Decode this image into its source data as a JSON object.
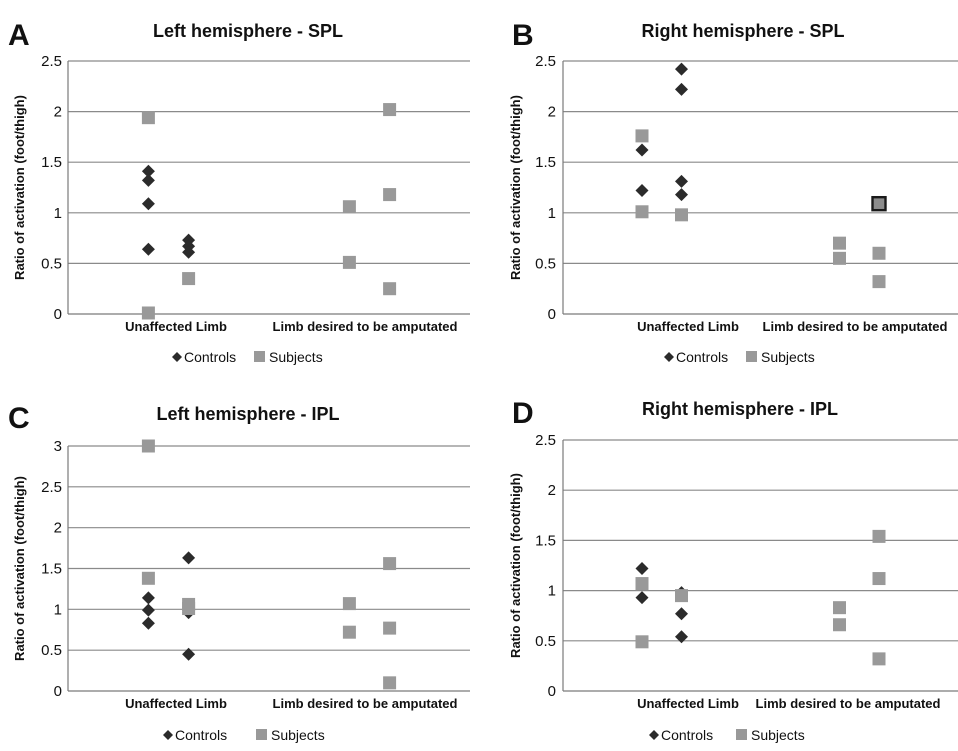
{
  "figure": {
    "legend_controls": "Controls",
    "legend_subjects": "Subjects",
    "ylabel": "Ratio of activation (foot/thigh)"
  },
  "colors": {
    "controls": "#2b2b2b",
    "subjects": "#999999",
    "highlight_fill": "#8c8c8c",
    "highlight_stroke": "#1a1a1a",
    "gridline": "#8a8a8a"
  },
  "chart_data": [
    {
      "panel_letter": "A",
      "title": "Left hemisphere - SPL",
      "type": "scatter",
      "categories": [
        "Unaffected Limb",
        "Limb desired to be amputated"
      ],
      "ylabel": "Ratio of activation (foot/thigh)",
      "ylim": [
        0,
        2.5
      ],
      "yticks": [
        "0",
        "0.5",
        "1",
        "1.5",
        "2",
        "2.5"
      ],
      "grid": true,
      "legend": "bottom",
      "series": [
        {
          "name": "Controls",
          "marker": "diamond",
          "x": [
            0.9,
            0.9,
            0.9,
            0.9,
            1.1,
            1.1,
            1.1
          ],
          "y": [
            1.41,
            1.32,
            1.09,
            0.64,
            0.73,
            0.67,
            0.61
          ]
        },
        {
          "name": "Subjects",
          "marker": "square",
          "x": [
            0.9,
            0.9,
            1.1,
            1.9,
            1.9,
            2.1,
            2.1,
            2.1
          ],
          "y": [
            1.94,
            0.01,
            0.35,
            1.06,
            0.51,
            2.02,
            1.18,
            0.25
          ]
        }
      ]
    },
    {
      "panel_letter": "B",
      "title": "Right hemisphere - SPL",
      "type": "scatter",
      "categories": [
        "Unaffected Limb",
        "Limb desired to be amputated"
      ],
      "ylabel": "Ratio of activation (foot/thigh)",
      "ylim": [
        0,
        2.5
      ],
      "yticks": [
        "0",
        "0.5",
        "1",
        "1.5",
        "2",
        "2.5"
      ],
      "grid": true,
      "legend": "bottom",
      "series": [
        {
          "name": "Controls",
          "marker": "diamond",
          "x": [
            0.9,
            0.9,
            1.1,
            1.1,
            1.1,
            1.1
          ],
          "y": [
            1.62,
            1.22,
            2.42,
            2.22,
            1.31,
            1.18
          ]
        },
        {
          "name": "Subjects",
          "marker": "square",
          "x": [
            0.9,
            0.9,
            1.1,
            1.9,
            1.9,
            2.1,
            2.1,
            2.1
          ],
          "y": [
            1.76,
            1.01,
            0.98,
            0.7,
            0.55,
            1.09,
            0.6,
            0.32
          ],
          "highlight_index": 5
        }
      ]
    },
    {
      "panel_letter": "C",
      "title": "Left hemisphere - IPL",
      "type": "scatter",
      "categories": [
        "Unaffected Limb",
        "Limb desired to be amputated"
      ],
      "ylabel": "Ratio of activation (foot/thigh)",
      "ylim": [
        0,
        3
      ],
      "yticks": [
        "0",
        "0.5",
        "1",
        "1.5",
        "2",
        "2.5",
        "3"
      ],
      "grid": true,
      "legend": "bottom",
      "series": [
        {
          "name": "Controls",
          "marker": "diamond",
          "x": [
            0.9,
            0.9,
            0.9,
            1.1,
            1.1,
            1.1
          ],
          "y": [
            1.14,
            0.99,
            0.83,
            1.63,
            0.96,
            0.45
          ]
        },
        {
          "name": "Subjects",
          "marker": "square",
          "x": [
            0.9,
            1.1,
            1.1,
            1.9,
            1.9,
            2.1,
            2.1,
            2.1,
            0.9
          ],
          "y": [
            1.38,
            1.06,
            1.01,
            1.07,
            0.72,
            1.56,
            0.77,
            0.1,
            3.0
          ]
        }
      ]
    },
    {
      "panel_letter": "D",
      "title": "Right hemisphere - IPL",
      "type": "scatter",
      "categories": [
        "Unaffected Limb",
        "Limb desired to be amputated"
      ],
      "ylabel": "Ratio of activation (foot/thigh)",
      "ylim": [
        0,
        2.5
      ],
      "yticks": [
        "0",
        "0.5",
        "1",
        "1.5",
        "2",
        "2.5"
      ],
      "grid": true,
      "legend": "bottom",
      "series": [
        {
          "name": "Controls",
          "marker": "diamond",
          "x": [
            0.9,
            0.9,
            1.1,
            1.1,
            1.1
          ],
          "y": [
            1.22,
            0.93,
            0.98,
            0.77,
            0.54
          ]
        },
        {
          "name": "Subjects",
          "marker": "square",
          "x": [
            0.9,
            0.9,
            1.1,
            1.9,
            1.9,
            2.1,
            2.1,
            2.1
          ],
          "y": [
            1.07,
            0.49,
            0.95,
            0.83,
            0.66,
            1.54,
            1.12,
            0.32
          ]
        }
      ]
    }
  ]
}
